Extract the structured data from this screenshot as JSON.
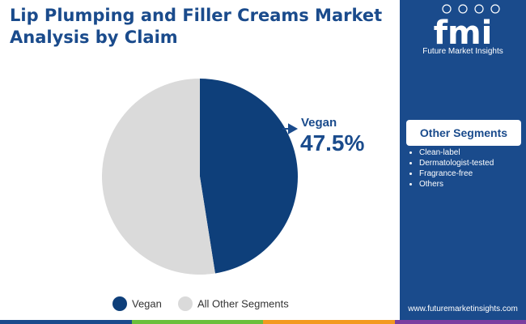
{
  "title": "Lip Plumping and Filler Creams Market Analysis by Claim",
  "brand": {
    "logo_text": "fmi",
    "name": "Future Market Insights",
    "website": "www.futuremarketinsights.com"
  },
  "other_segments": {
    "title": "Other Segments",
    "items": [
      "Clean-label",
      "Dermatologist-tested",
      "Fragrance-free",
      "Others"
    ]
  },
  "colors": {
    "primary": "#1a4b8c",
    "vegan": "#0e3f7a",
    "other": "#dadada",
    "bottom_bar": [
      "#1a4b8c",
      "#6bbf3b",
      "#f39a1f",
      "#7b3fa0"
    ]
  },
  "chart_data": {
    "type": "pie",
    "title": "Lip Plumping and Filler Creams Market Analysis by Claim",
    "categories": [
      "Vegan",
      "All Other Segments"
    ],
    "values": [
      47.5,
      52.5
    ],
    "unit": "%",
    "annotation": {
      "label": "Vegan",
      "value": "47.5%"
    },
    "legend": {
      "position": "bottom",
      "entries": [
        "Vegan",
        "All Other Segments"
      ]
    }
  }
}
